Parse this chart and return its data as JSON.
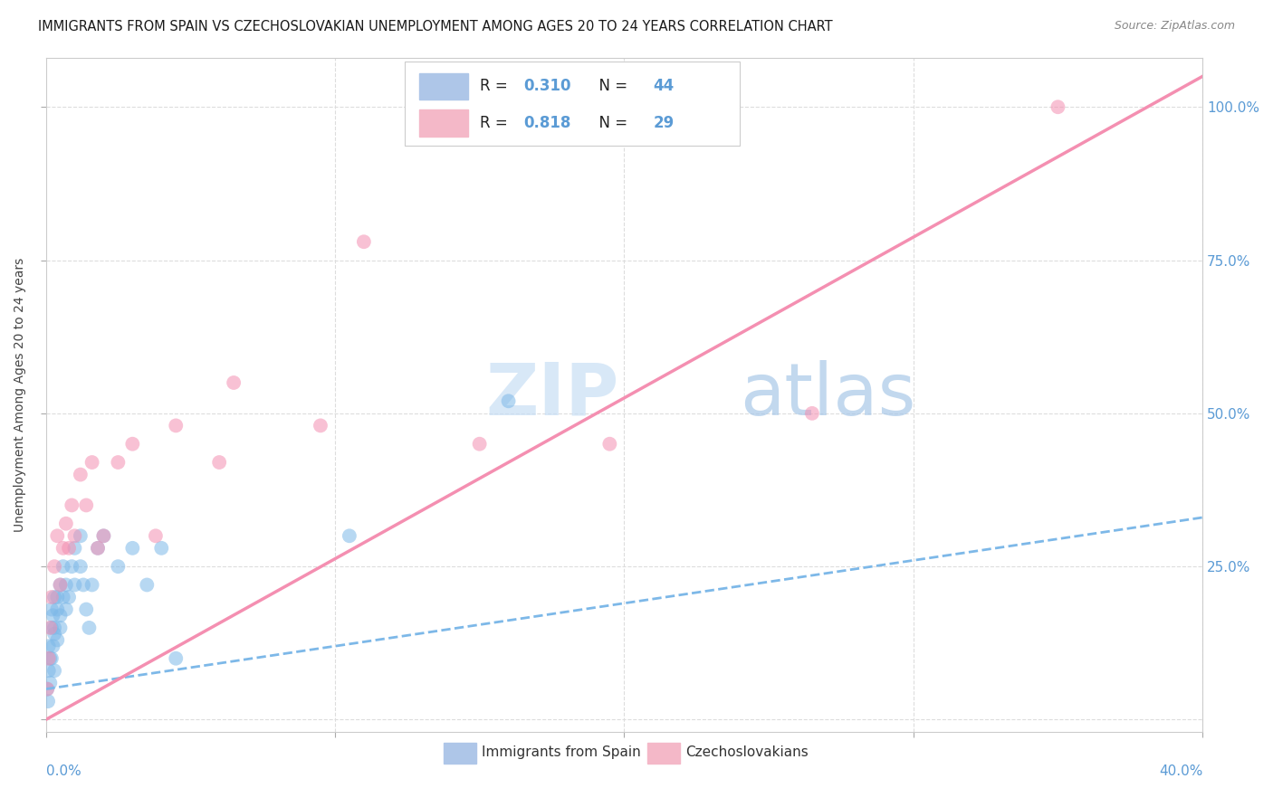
{
  "title": "IMMIGRANTS FROM SPAIN VS CZECHOSLOVAKIAN UNEMPLOYMENT AMONG AGES 20 TO 24 YEARS CORRELATION CHART",
  "source": "Source: ZipAtlas.com",
  "ylabel": "Unemployment Among Ages 20 to 24 years",
  "ytick_values": [
    0.0,
    0.25,
    0.5,
    0.75,
    1.0
  ],
  "xlim": [
    0.0,
    0.4
  ],
  "ylim": [
    -0.02,
    1.08
  ],
  "watermark": "ZIPatlas",
  "spain_color": "#7db8e8",
  "czech_color": "#f48fb1",
  "spain_line_color": "#7db8e8",
  "czech_line_color": "#f48fb1",
  "background_color": "#ffffff",
  "grid_color": "#dddddd",
  "spain_scatter_x": [
    0.0005,
    0.0008,
    0.001,
    0.001,
    0.0015,
    0.0015,
    0.002,
    0.002,
    0.002,
    0.0025,
    0.0025,
    0.003,
    0.003,
    0.003,
    0.003,
    0.004,
    0.004,
    0.004,
    0.005,
    0.005,
    0.005,
    0.006,
    0.006,
    0.007,
    0.007,
    0.008,
    0.009,
    0.01,
    0.01,
    0.012,
    0.012,
    0.013,
    0.014,
    0.015,
    0.016,
    0.018,
    0.02,
    0.025,
    0.03,
    0.035,
    0.04,
    0.045,
    0.105,
    0.16
  ],
  "spain_scatter_y": [
    0.05,
    0.03,
    0.08,
    0.12,
    0.06,
    0.1,
    0.15,
    0.1,
    0.18,
    0.12,
    0.17,
    0.14,
    0.2,
    0.15,
    0.08,
    0.18,
    0.2,
    0.13,
    0.17,
    0.22,
    0.15,
    0.2,
    0.25,
    0.18,
    0.22,
    0.2,
    0.25,
    0.28,
    0.22,
    0.25,
    0.3,
    0.22,
    0.18,
    0.15,
    0.22,
    0.28,
    0.3,
    0.25,
    0.28,
    0.22,
    0.28,
    0.1,
    0.3,
    0.52
  ],
  "czech_scatter_x": [
    0.0005,
    0.001,
    0.0015,
    0.002,
    0.003,
    0.004,
    0.005,
    0.006,
    0.007,
    0.008,
    0.009,
    0.01,
    0.012,
    0.014,
    0.016,
    0.018,
    0.02,
    0.025,
    0.03,
    0.038,
    0.045,
    0.06,
    0.065,
    0.095,
    0.11,
    0.15,
    0.195,
    0.265,
    0.35
  ],
  "czech_scatter_y": [
    0.05,
    0.1,
    0.15,
    0.2,
    0.25,
    0.3,
    0.22,
    0.28,
    0.32,
    0.28,
    0.35,
    0.3,
    0.4,
    0.35,
    0.42,
    0.28,
    0.3,
    0.42,
    0.45,
    0.3,
    0.48,
    0.42,
    0.55,
    0.48,
    0.78,
    0.45,
    0.45,
    0.5,
    1.0
  ],
  "spain_trendline_x": [
    0.0,
    0.4
  ],
  "spain_trendline_y": [
    0.05,
    0.33
  ],
  "czech_trendline_x": [
    0.0,
    0.4
  ],
  "czech_trendline_y": [
    0.0,
    1.05
  ],
  "legend_r1": "R = 0.310",
  "legend_n1": "N = 44",
  "legend_r2": "R = 0.818",
  "legend_n2": "N = 29",
  "legend_color1": "#aec6e8",
  "legend_color2": "#f4b8c8",
  "accent_color": "#5b9bd5"
}
